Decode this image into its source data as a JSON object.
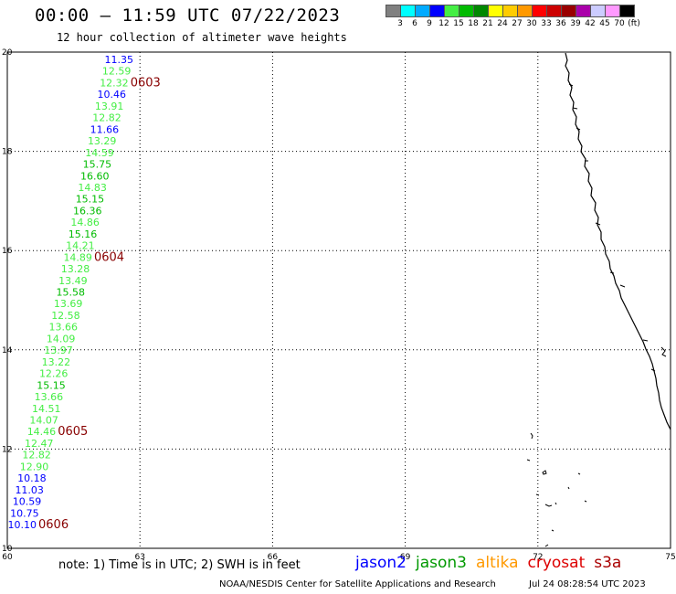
{
  "header": {
    "title": "00:00 – 11:59 UTC 07/22/2023",
    "subtitle": "12 hour collection of altimeter wave heights"
  },
  "legend": {
    "colors": [
      "#808080",
      "#00ffff",
      "#00aaff",
      "#0000ff",
      "#44ee44",
      "#00bb00",
      "#008800",
      "#ffff00",
      "#ffcc00",
      "#ff9900",
      "#ff0000",
      "#cc0000",
      "#990000",
      "#aa00aa",
      "#ccccff",
      "#ff99ff",
      "#000000"
    ],
    "labels": [
      "3",
      "6",
      "9",
      "12",
      "15",
      "18",
      "21",
      "24",
      "27",
      "30",
      "33",
      "36",
      "39",
      "42",
      "45",
      "70",
      "(ft)"
    ]
  },
  "map": {
    "lon_ticks": [
      "60",
      "63",
      "66",
      "69",
      "72",
      "75"
    ],
    "lat_ticks": [
      "20",
      "18",
      "16",
      "14",
      "12",
      "10"
    ],
    "points": [
      {
        "text": "11.35",
        "color": "#0000ff"
      },
      {
        "text": "12.59",
        "color": "#44ee44"
      },
      {
        "text": "12.32",
        "color": "#44ee44"
      },
      {
        "text": "10.46",
        "color": "#0000ff"
      },
      {
        "text": "13.91",
        "color": "#44ee44"
      },
      {
        "text": "12.82",
        "color": "#44ee44"
      },
      {
        "text": "11.66",
        "color": "#0000ff"
      },
      {
        "text": "13.29",
        "color": "#44ee44"
      },
      {
        "text": "14.59",
        "color": "#44ee44"
      },
      {
        "text": "15.75",
        "color": "#00bb00"
      },
      {
        "text": "16.60",
        "color": "#00bb00"
      },
      {
        "text": "14.83",
        "color": "#44ee44"
      },
      {
        "text": "15.15",
        "color": "#00bb00"
      },
      {
        "text": "16.36",
        "color": "#00bb00"
      },
      {
        "text": "14.86",
        "color": "#44ee44"
      },
      {
        "text": "15.16",
        "color": "#00bb00"
      },
      {
        "text": "14.21",
        "color": "#44ee44"
      },
      {
        "text": "14.89",
        "color": "#44ee44"
      },
      {
        "text": "13.28",
        "color": "#44ee44"
      },
      {
        "text": "13.49",
        "color": "#44ee44"
      },
      {
        "text": "15.58",
        "color": "#00bb00"
      },
      {
        "text": "13.69",
        "color": "#44ee44"
      },
      {
        "text": "12.58",
        "color": "#44ee44"
      },
      {
        "text": "13.66",
        "color": "#44ee44"
      },
      {
        "text": "14.09",
        "color": "#44ee44"
      },
      {
        "text": "13.97",
        "color": "#44ee44"
      },
      {
        "text": "13.22",
        "color": "#44ee44"
      },
      {
        "text": "12.26",
        "color": "#44ee44"
      },
      {
        "text": "15.15",
        "color": "#00bb00"
      },
      {
        "text": "13.66",
        "color": "#44ee44"
      },
      {
        "text": "14.51",
        "color": "#44ee44"
      },
      {
        "text": "14.07",
        "color": "#44ee44"
      },
      {
        "text": "14.46",
        "color": "#44ee44"
      },
      {
        "text": "12.47",
        "color": "#44ee44"
      },
      {
        "text": "12.82",
        "color": "#44ee44"
      },
      {
        "text": "12.90",
        "color": "#44ee44"
      },
      {
        "text": "10.18",
        "color": "#0000ff"
      },
      {
        "text": "11.03",
        "color": "#0000ff"
      },
      {
        "text": "10.59",
        "color": "#0000ff"
      },
      {
        "text": "10.75",
        "color": "#0000ff"
      },
      {
        "text": "10.10",
        "color": "#0000ff"
      }
    ],
    "time_labels": [
      "0603",
      "0604",
      "0605",
      "0606"
    ],
    "time_label_color": "#880000"
  },
  "footer": {
    "note": "note:  1) Time is in UTC;  2) SWH is in feet",
    "satellites": [
      {
        "name": "jason2",
        "color": "#0000ff"
      },
      {
        "name": "jason3",
        "color": "#009900"
      },
      {
        "name": "altika",
        "color": "#ff9900"
      },
      {
        "name": "cryosat",
        "color": "#dd0000"
      },
      {
        "name": "s3a",
        "color": "#aa0000"
      }
    ],
    "credit": "NOAA/NESDIS Center for Satellite Applications and Research",
    "timestamp": "Jul 24 08:28:54 UTC 2023"
  }
}
